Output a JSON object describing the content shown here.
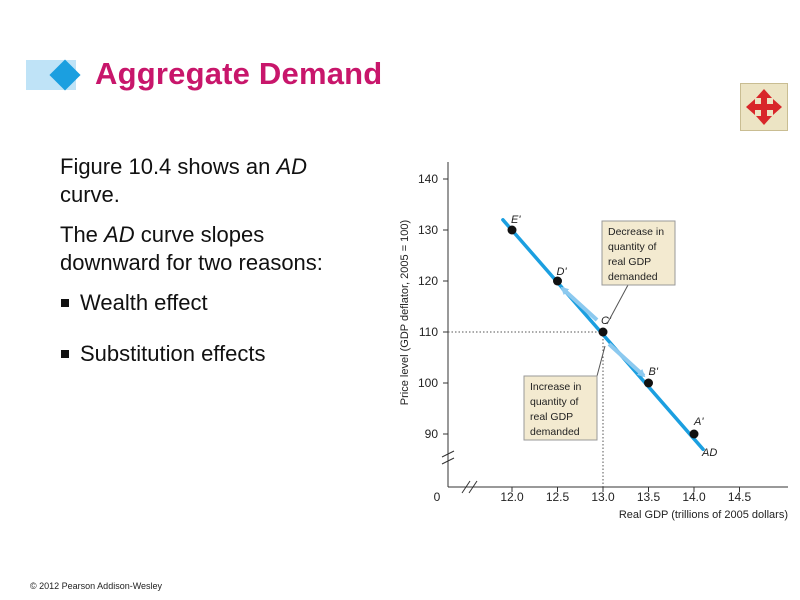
{
  "header": {
    "title": "Aggregate Demand"
  },
  "nav": {
    "icon": "four-way-arrows-icon"
  },
  "body": {
    "para1_a": "Figure 10.4 shows an ",
    "para1_b": "AD",
    "para1_c": " curve.",
    "para2_a": "The ",
    "para2_b": "AD",
    "para2_c": " curve slopes downward for two reasons:",
    "bullets": [
      "Wealth effect",
      "Substitution effects"
    ]
  },
  "footer": {
    "copyright": "© 2012 Pearson Addison-Wesley"
  },
  "colors": {
    "title": "#c8166b",
    "curve": "#1b9fe0",
    "accent": "#1b9fe0",
    "annotation_bg": "#f3ead0"
  },
  "chart_data": {
    "type": "line",
    "xlabel": "Real GDP (trillions of 2005 dollars)",
    "ylabel": "Price level (GDP deflator, 2005 = 100)",
    "x_ticks": [
      "12.0",
      "12.5",
      "13.0",
      "13.5",
      "14.0",
      "14.5"
    ],
    "y_ticks": [
      "90",
      "100",
      "110",
      "120",
      "130",
      "140"
    ],
    "origin_label": "0",
    "xlim": [
      11.4,
      14.5
    ],
    "ylim": [
      82,
      140
    ],
    "series": [
      {
        "name": "AD",
        "points": [
          {
            "label": "E'",
            "x": 12.0,
            "y": 130
          },
          {
            "label": "D'",
            "x": 12.5,
            "y": 120
          },
          {
            "label": "C'",
            "x": 13.0,
            "y": 110
          },
          {
            "label": "B'",
            "x": 13.5,
            "y": 100
          },
          {
            "label": "A'",
            "x": 14.0,
            "y": 90
          }
        ],
        "line_from": {
          "x": 11.9,
          "y": 132
        },
        "line_to": {
          "x": 14.1,
          "y": 87
        }
      }
    ],
    "reference_point": {
      "x": 13.0,
      "y": 110
    },
    "annotations": [
      {
        "lines": [
          "Decrease in",
          "quantity of",
          "real GDP",
          "demanded"
        ]
      },
      {
        "lines": [
          "Increase in",
          "quantity of",
          "real GDP",
          "demanded"
        ]
      }
    ],
    "grid": false
  }
}
